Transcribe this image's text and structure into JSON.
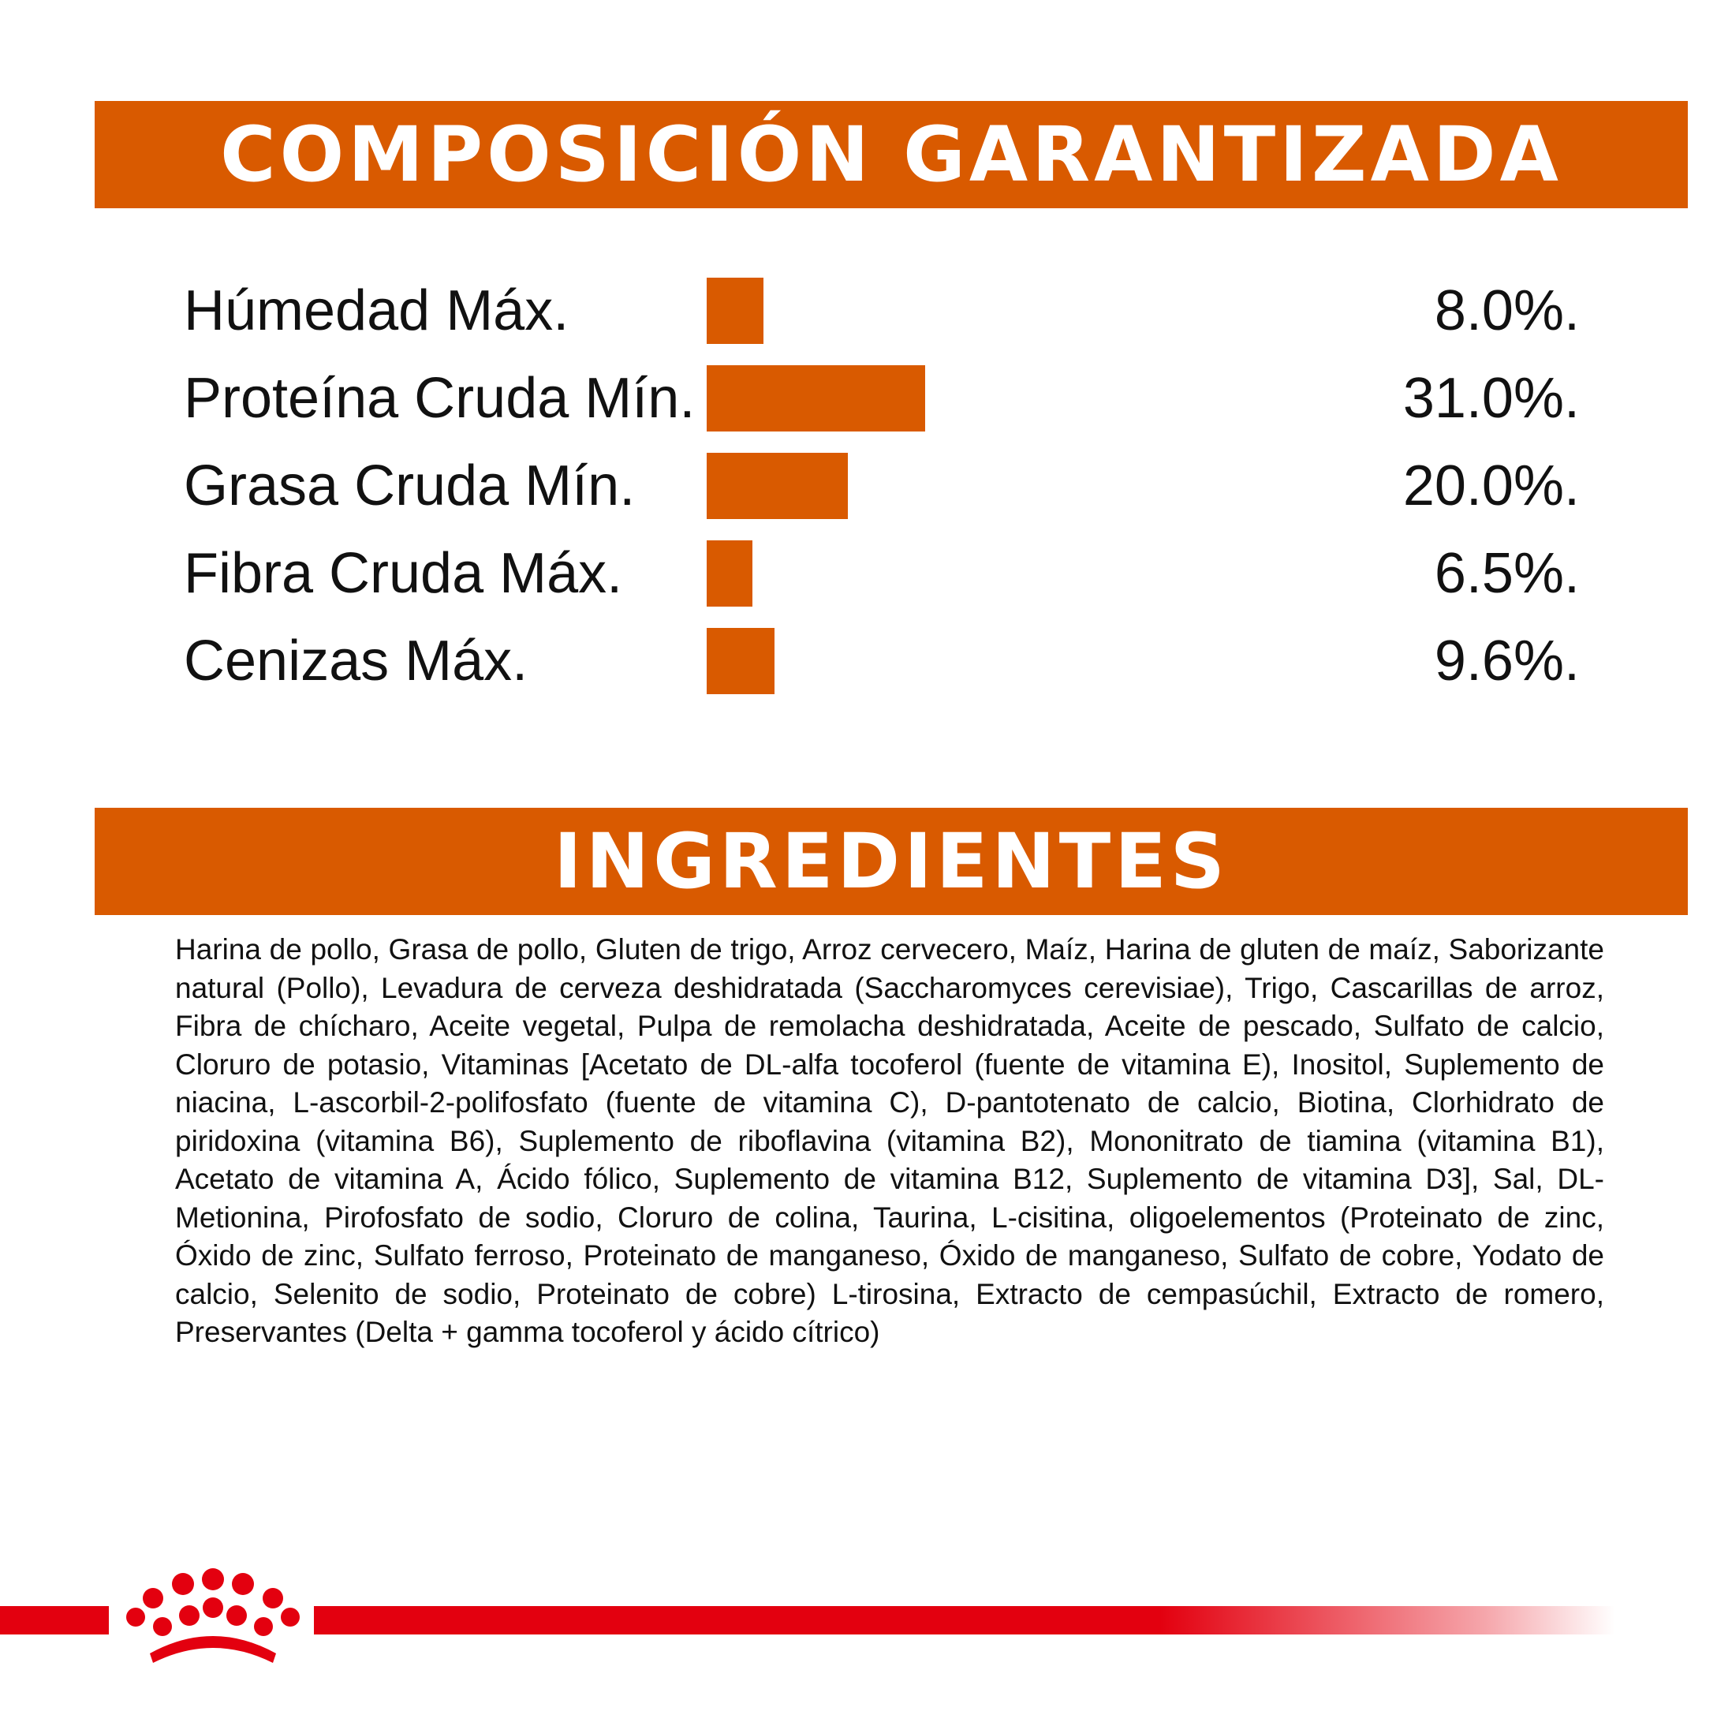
{
  "composition": {
    "title": "COMPOSICIÓN GARANTIZADA",
    "rows": [
      {
        "label": "Húmedad Máx.",
        "value": "8.0%.",
        "percent": 8.0
      },
      {
        "label": "Proteína Cruda Mín.",
        "value": "31.0%.",
        "percent": 31.0
      },
      {
        "label": "Grasa Cruda Mín.",
        "value": "20.0%.",
        "percent": 20.0
      },
      {
        "label": "Fibra Cruda Máx.",
        "value": "6.5%.",
        "percent": 6.5
      },
      {
        "label": "Cenizas Máx.",
        "value": "9.6%.",
        "percent": 9.6
      }
    ]
  },
  "ingredients": {
    "title": "INGREDIENTES",
    "text": "Harina de pollo, Grasa de pollo, Gluten de trigo, Arroz cervecero, Maíz, Harina de gluten de maíz, Saborizante natural (Pollo), Levadura de cerveza deshidratada (Saccharomyces cerevisiae), Trigo, Cascarillas de arroz, Fibra de chícharo, Aceite vegetal, Pulpa de remolacha deshidratada, Aceite de pescado, Sulfato de calcio, Cloruro de potasio, Vitaminas [Acetato de DL-alfa tocoferol (fuente de vitamina E), Inositol, Suplemento de niacina, L-ascorbil-2-polifosfato (fuente de vitamina C), D-pantotenato de calcio, Biotina, Clorhidrato de piridoxina (vitamina B6), Suplemento de riboflavina (vitamina B2), Mononitrato de tiamina (vitamina B1), Acetato de vitamina A, Ácido fólico, Suplemento de vitamina B12, Suplemento de vitamina D3], Sal, DL-Metionina, Pirofosfato de sodio, Cloruro de colina, Taurina, L-cisitina, oligoelementos (Proteinato de zinc, Óxido de zinc, Sulfato ferroso, Proteinato de manganeso, Óxido de manganeso, Sulfato de cobre, Yodato de calcio, Selenito de sodio, Proteinato de cobre) L-tirosina, Extracto de cempasúchil, Extracto de romero, Preservantes (Delta + gamma tocoferol y ácido cítrico)"
  },
  "colors": {
    "accent": "#d95a00",
    "brand_red": "#e3000f"
  },
  "footer": {
    "logo": "royal-crown-icon"
  }
}
